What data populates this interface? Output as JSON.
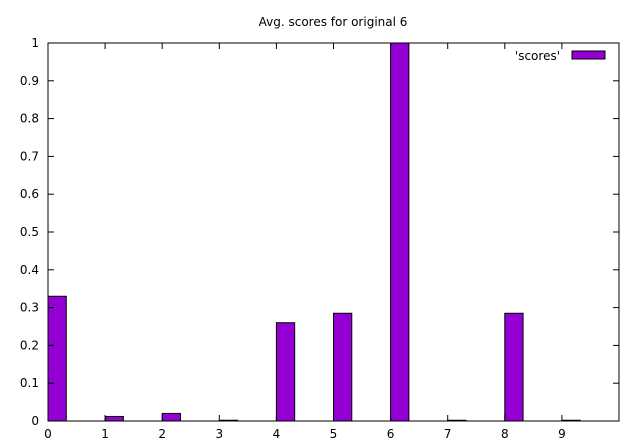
{
  "chart_data": {
    "type": "bar",
    "title": "Avg. scores for original 6",
    "xlabel": "",
    "ylabel": "",
    "x_ticks": [
      "0",
      "1",
      "2",
      "3",
      "4",
      "5",
      "6",
      "7",
      "8",
      "9"
    ],
    "y_ticks": [
      "0",
      "0.1",
      "0.2",
      "0.3",
      "0.4",
      "0.5",
      "0.6",
      "0.7",
      "0.8",
      "0.9",
      "1"
    ],
    "xlim": [
      0,
      10
    ],
    "ylim": [
      0,
      1
    ],
    "grid": false,
    "legend_position": "top-right",
    "series": [
      {
        "name": "'scores'",
        "color": "#9400d3",
        "x": [
          0,
          1,
          2,
          3,
          4,
          5,
          6,
          7,
          8,
          9
        ],
        "values": [
          0.33,
          0.012,
          0.02,
          0.002,
          0.26,
          0.285,
          1.0,
          0.002,
          0.285,
          0.002
        ]
      }
    ]
  }
}
